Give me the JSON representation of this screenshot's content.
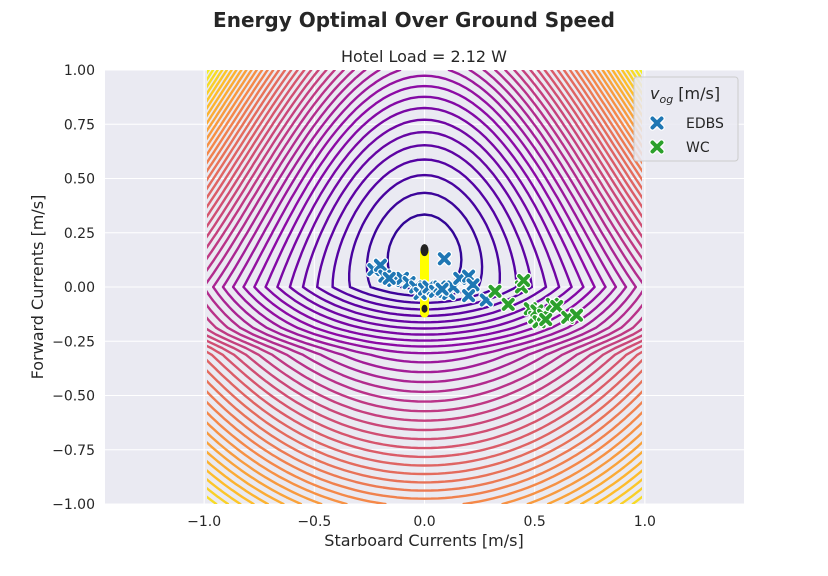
{
  "chart_data": {
    "type": "contour",
    "suptitle": "Energy Optimal Over Ground Speed",
    "title": "Hotel Load = 2.12 W",
    "xlabel": "Starboard Currents [m/s]",
    "ylabel": "Forward Currents [m/s]",
    "xlim": [
      -1.45,
      1.45
    ],
    "ylim": [
      -1.0,
      1.0
    ],
    "xticks": [
      -1.0,
      -0.5,
      0.0,
      0.5,
      1.0
    ],
    "xtick_labels": [
      "−1.0",
      "−0.5",
      "0.0",
      "0.5",
      "1.0"
    ],
    "yticks": [
      1.0,
      0.75,
      0.5,
      0.25,
      0.0,
      -0.25,
      -0.5,
      -0.75,
      -1.0
    ],
    "ytick_labels": [
      "1.00",
      "0.75",
      "0.50",
      "0.25",
      "0.00",
      "−0.25",
      "−0.50",
      "−0.75",
      "−1.00"
    ],
    "grid": true,
    "contour_domain": {
      "x": [
        -1.0,
        1.0
      ],
      "y": [
        -1.0,
        1.0
      ]
    },
    "colormap": "plasma/inferno",
    "legend": {
      "title_main": "v",
      "title_sub": "og",
      "title_unit": " [m/s]",
      "placement": "upper-right"
    },
    "series": [
      {
        "name": "EDBS",
        "color": "#1f77b4",
        "marker": "X",
        "points": [
          [
            -0.23,
            0.08
          ],
          [
            -0.2,
            0.1
          ],
          [
            -0.18,
            0.05
          ],
          [
            -0.14,
            0.03
          ],
          [
            -0.1,
            0.04
          ],
          [
            -0.07,
            0.02
          ],
          [
            -0.04,
            0.0
          ],
          [
            -0.02,
            -0.03
          ],
          [
            0.0,
            -0.01
          ],
          [
            0.02,
            0.0
          ],
          [
            0.05,
            -0.02
          ],
          [
            0.07,
            0.0
          ],
          [
            0.09,
            0.13
          ],
          [
            0.11,
            -0.03
          ],
          [
            0.13,
            0.0
          ],
          [
            0.16,
            0.04
          ],
          [
            0.2,
            0.05
          ],
          [
            0.22,
            0.01
          ],
          [
            0.2,
            -0.04
          ],
          [
            0.28,
            -0.06
          ],
          [
            -0.16,
            0.04
          ],
          [
            0.08,
            -0.01
          ]
        ]
      },
      {
        "name": "WC",
        "color": "#2ca02c",
        "marker": "X",
        "points": [
          [
            0.32,
            -0.02
          ],
          [
            0.38,
            -0.08
          ],
          [
            0.44,
            0.0
          ],
          [
            0.45,
            0.03
          ],
          [
            0.48,
            -0.1
          ],
          [
            0.5,
            -0.14
          ],
          [
            0.51,
            -0.11
          ],
          [
            0.52,
            -0.16
          ],
          [
            0.54,
            -0.13
          ],
          [
            0.58,
            -0.08
          ],
          [
            0.6,
            -0.09
          ],
          [
            0.65,
            -0.14
          ],
          [
            0.69,
            -0.13
          ],
          [
            0.55,
            -0.15
          ]
        ]
      }
    ]
  }
}
